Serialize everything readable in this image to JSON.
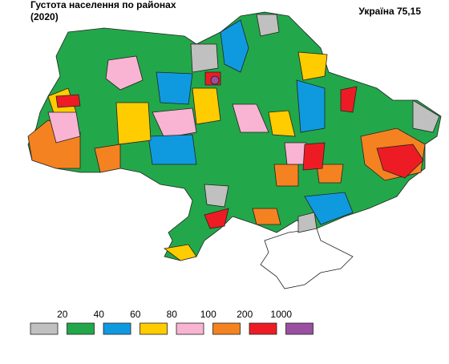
{
  "title": "Густота населення по районах",
  "subtitle": "(2020)",
  "summary": "Україна 75,15",
  "legend": {
    "thresholds": [
      20,
      40,
      60,
      80,
      100,
      200,
      1000
    ],
    "colors": [
      "#c0c0c0",
      "#22a84a",
      "#0f9ae0",
      "#ffcc00",
      "#f8b4d2",
      "#f58220",
      "#ed1c24",
      "#9b4fa0"
    ]
  }
}
